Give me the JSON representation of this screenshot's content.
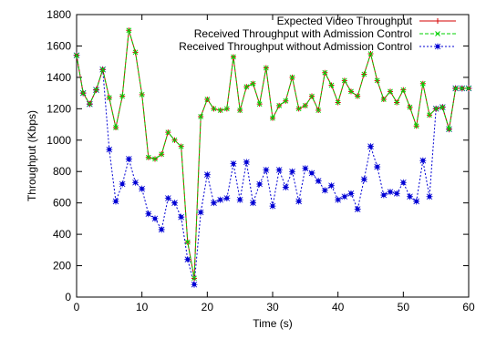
{
  "chart_data": {
    "type": "line",
    "title": "",
    "xlabel": "Time (s)",
    "ylabel": "Throughput (Kbps)",
    "xlim": [
      0,
      60
    ],
    "ylim": [
      0,
      1800
    ],
    "xticks": [
      0,
      10,
      20,
      30,
      40,
      50,
      60
    ],
    "yticks": [
      0,
      200,
      400,
      600,
      800,
      1000,
      1200,
      1400,
      1600,
      1800
    ],
    "grid": false,
    "legend_position": "top-right",
    "series": [
      {
        "name": "Expected Video Throughput",
        "color": "#d40000",
        "dash": "solid",
        "marker": "plus",
        "x": [
          0,
          1,
          2,
          3,
          4,
          5,
          6,
          7,
          8,
          9,
          10,
          11,
          12,
          13,
          14,
          15,
          16,
          17,
          18,
          19,
          20,
          21,
          22,
          23,
          24,
          25,
          26,
          27,
          28,
          29,
          30,
          31,
          32,
          33,
          34,
          35,
          36,
          37,
          38,
          39,
          40,
          41,
          42,
          43,
          44,
          45,
          46,
          47,
          48,
          49,
          50,
          51,
          52,
          53,
          54,
          55,
          56,
          57,
          58,
          59,
          60
        ],
        "y": [
          1540,
          1300,
          1230,
          1320,
          1450,
          1270,
          1080,
          1280,
          1700,
          1560,
          1290,
          890,
          880,
          910,
          1050,
          1000,
          960,
          350,
          120,
          1150,
          1260,
          1200,
          1190,
          1200,
          1530,
          1190,
          1340,
          1360,
          1230,
          1460,
          1140,
          1220,
          1250,
          1400,
          1200,
          1220,
          1280,
          1190,
          1430,
          1350,
          1240,
          1380,
          1310,
          1280,
          1420,
          1550,
          1380,
          1260,
          1310,
          1240,
          1320,
          1210,
          1090,
          1360,
          1160,
          1200,
          1210,
          1070,
          1330,
          1330,
          1330
        ]
      },
      {
        "name": "Received Throughput with Admission Control",
        "color": "#00d200",
        "dash": "dashed",
        "marker": "x",
        "x": [
          0,
          1,
          2,
          3,
          4,
          5,
          6,
          7,
          8,
          9,
          10,
          11,
          12,
          13,
          14,
          15,
          16,
          17,
          18,
          19,
          20,
          21,
          22,
          23,
          24,
          25,
          26,
          27,
          28,
          29,
          30,
          31,
          32,
          33,
          34,
          35,
          36,
          37,
          38,
          39,
          40,
          41,
          42,
          43,
          44,
          45,
          46,
          47,
          48,
          49,
          50,
          51,
          52,
          53,
          54,
          55,
          56,
          57,
          58,
          59,
          60
        ],
        "y": [
          1540,
          1300,
          1230,
          1320,
          1450,
          1270,
          1080,
          1280,
          1700,
          1560,
          1290,
          890,
          880,
          910,
          1050,
          1000,
          960,
          350,
          120,
          1150,
          1260,
          1200,
          1190,
          1200,
          1530,
          1190,
          1340,
          1360,
          1230,
          1460,
          1140,
          1220,
          1250,
          1400,
          1200,
          1220,
          1280,
          1190,
          1430,
          1350,
          1240,
          1380,
          1310,
          1280,
          1420,
          1550,
          1380,
          1260,
          1310,
          1240,
          1320,
          1210,
          1090,
          1360,
          1160,
          1200,
          1210,
          1070,
          1330,
          1330,
          1330
        ]
      },
      {
        "name": "Received Throughput without Admission Control",
        "color": "#0000d4",
        "dash": "dotted",
        "marker": "square",
        "x": [
          0,
          1,
          2,
          3,
          4,
          5,
          6,
          7,
          8,
          9,
          10,
          11,
          12,
          13,
          14,
          15,
          16,
          17,
          18,
          19,
          20,
          21,
          22,
          23,
          24,
          25,
          26,
          27,
          28,
          29,
          30,
          31,
          32,
          33,
          34,
          35,
          36,
          37,
          38,
          39,
          40,
          41,
          42,
          43,
          44,
          45,
          46,
          47,
          48,
          49,
          50,
          51,
          52,
          53,
          54,
          55,
          56,
          57,
          58,
          59,
          60
        ],
        "y": [
          1540,
          1300,
          1230,
          1320,
          1450,
          940,
          610,
          720,
          880,
          730,
          690,
          530,
          500,
          430,
          630,
          600,
          510,
          240,
          80,
          540,
          780,
          600,
          620,
          630,
          850,
          620,
          860,
          600,
          720,
          810,
          580,
          810,
          700,
          800,
          610,
          820,
          790,
          740,
          680,
          710,
          620,
          640,
          660,
          560,
          750,
          960,
          830,
          650,
          670,
          660,
          730,
          640,
          610,
          870,
          640,
          1200,
          1210,
          1070,
          1330,
          1330,
          1330
        ]
      }
    ]
  }
}
